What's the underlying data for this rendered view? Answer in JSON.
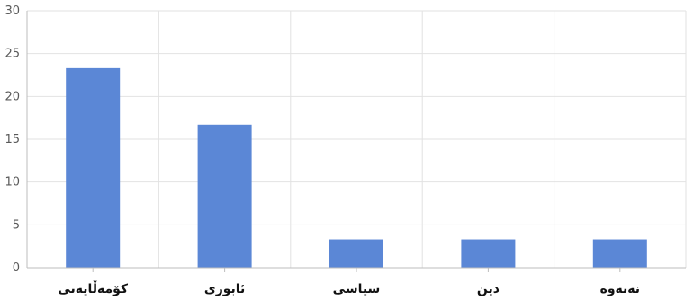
{
  "chart_data": {
    "type": "bar",
    "title": "",
    "xlabel": "",
    "ylabel": "",
    "categories": [
      "کۆمەڵایەتی",
      "ئابوری",
      "سیاسی",
      "دین",
      "نەتەوە"
    ],
    "values": [
      23.3,
      16.7,
      3.3,
      3.3,
      3.3
    ],
    "ylim": [
      0,
      30
    ],
    "yticks": [
      "0",
      "5",
      "10",
      "15",
      "20",
      "25",
      "30"
    ],
    "grid": true,
    "legend": "none",
    "bar_color": "#5B87D6",
    "grid_color": "#E2E2E2",
    "axis_color": "#BDBDBD"
  }
}
